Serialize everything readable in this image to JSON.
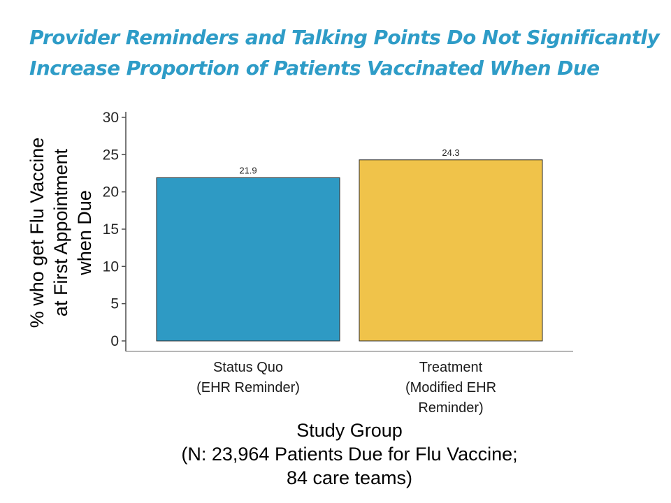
{
  "title": {
    "line1": "Provider Reminders and Talking Points Do Not Significantly",
    "line2": "Increase Proportion of Patients Vaccinated When Due"
  },
  "colors": {
    "title": "#2e9cc7",
    "status_quo": "#2e9ac4",
    "treatment": "#f0c34a"
  },
  "chart_data": {
    "type": "bar",
    "categories": [
      [
        "Status Quo",
        "(EHR Reminder)"
      ],
      [
        "Treatment",
        "(Modified EHR",
        "Reminder)"
      ]
    ],
    "values": [
      21.9,
      24.3
    ],
    "data_labels": [
      "21.9",
      "24.3"
    ],
    "ylabel": [
      "% who get Flu Vaccine",
      "at First Appointment",
      "when Due"
    ],
    "xlabel": [
      "Study Group",
      "(N: 23,964 Patients Due for Flu Vaccine;",
      "84 care teams)"
    ],
    "ylim": [
      0,
      30
    ],
    "yticks": [
      0,
      5,
      10,
      15,
      20,
      25,
      30
    ],
    "grid": false,
    "legend": "none"
  }
}
